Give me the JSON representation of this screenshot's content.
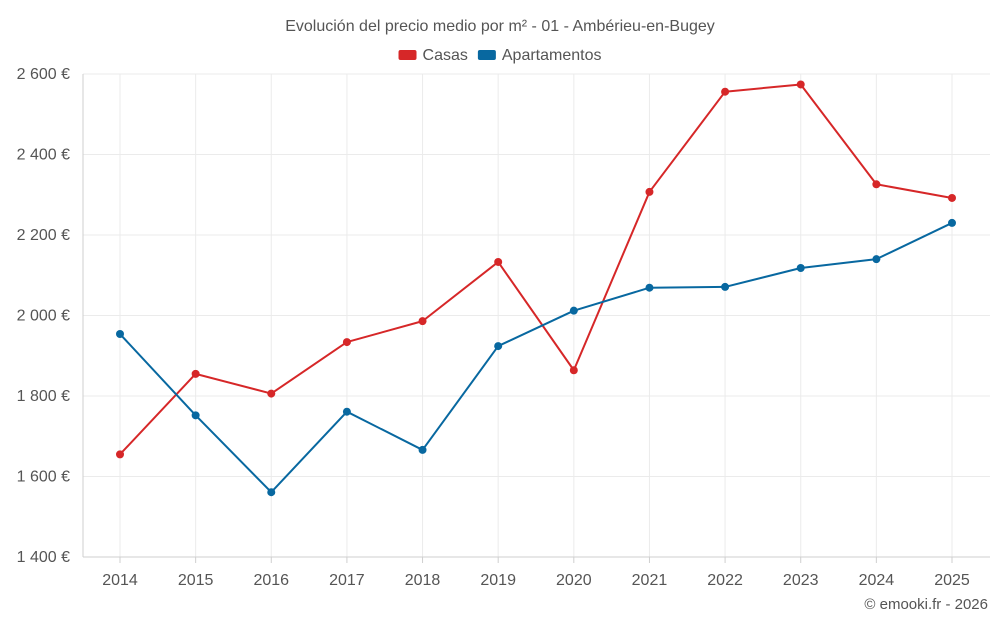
{
  "chart_data": {
    "type": "line",
    "title": "Evolución del precio medio por m² - 01 - Ambérieu-en-Bugey",
    "categories": [
      "2014",
      "2015",
      "2016",
      "2017",
      "2018",
      "2019",
      "2020",
      "2021",
      "2022",
      "2023",
      "2024",
      "2025"
    ],
    "ylim": [
      1400,
      2600
    ],
    "yticks": [
      1400,
      1600,
      1800,
      2000,
      2200,
      2400,
      2600
    ],
    "ytick_labels": [
      "1 400 €",
      "1 600 €",
      "1 800 €",
      "2 000 €",
      "2 200 €",
      "2 400 €",
      "2 600 €"
    ],
    "xlabel": "",
    "ylabel": "",
    "grid": true,
    "legend_position": "top-center",
    "series": [
      {
        "name": "Casas",
        "color": "#d62728",
        "values": [
          1655,
          1855,
          1806,
          1934,
          1986,
          2133,
          1864,
          2307,
          2556,
          2574,
          2326,
          2292
        ]
      },
      {
        "name": "Apartamentos",
        "color": "#0868a0",
        "values": [
          1954,
          1752,
          1561,
          1761,
          1666,
          1924,
          2012,
          2069,
          2071,
          2118,
          2140,
          2230
        ]
      }
    ]
  },
  "credit": "© emooki.fr - 2026"
}
